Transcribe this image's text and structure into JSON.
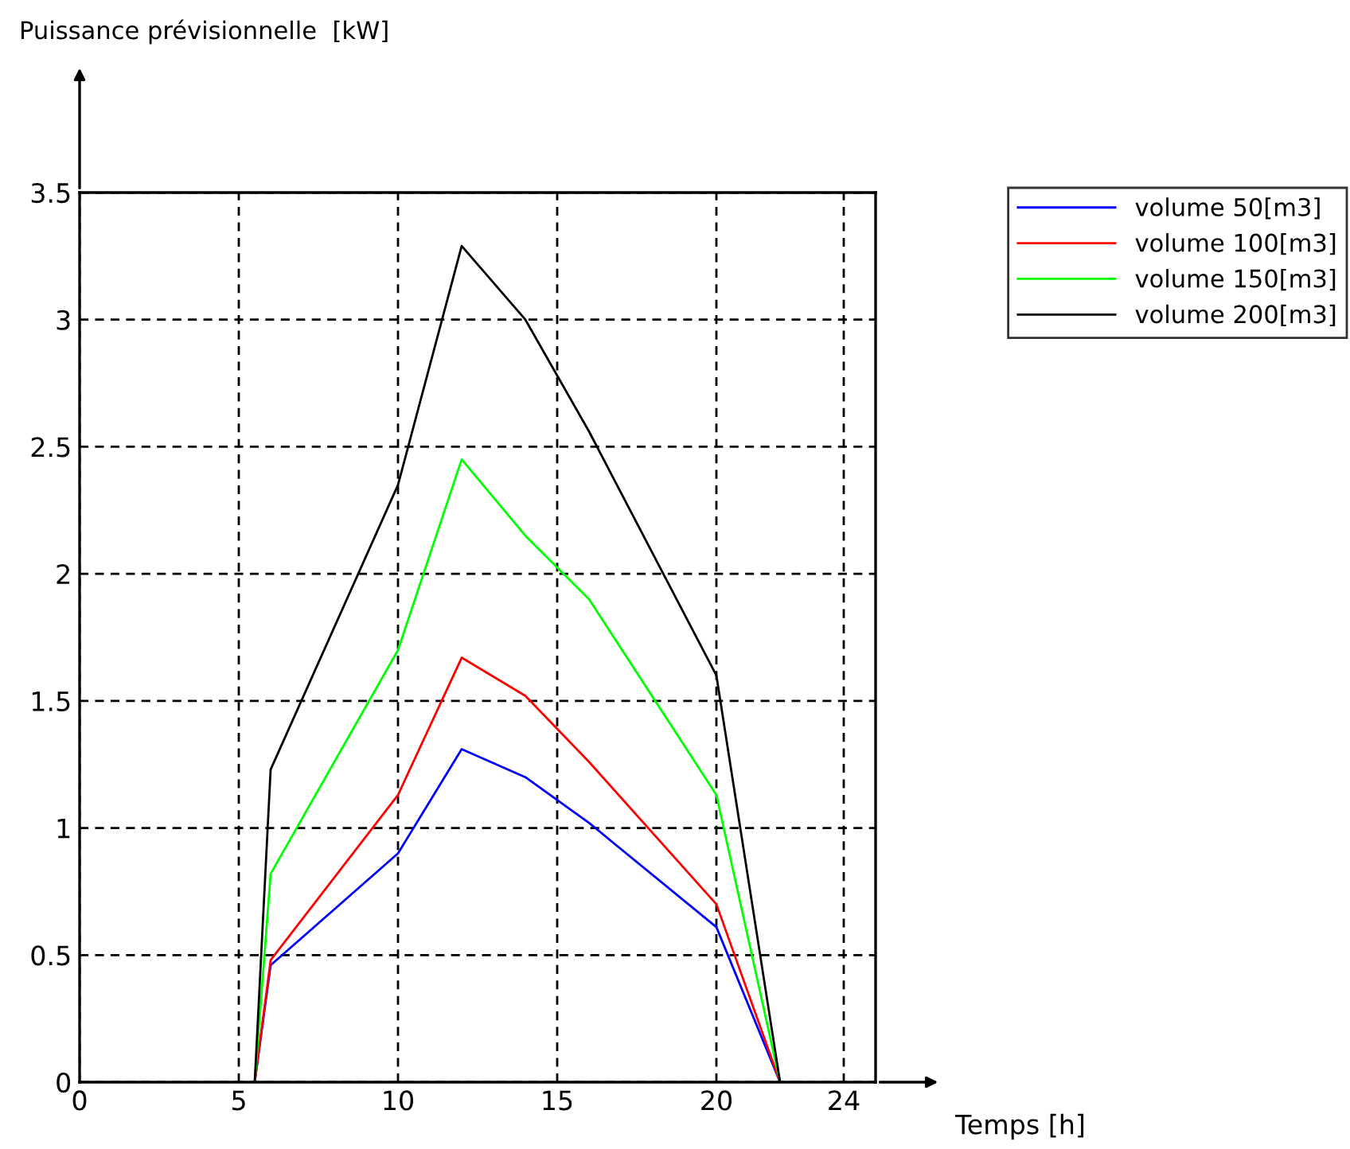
{
  "chart_data": {
    "type": "line",
    "annotations": [
      "Puissance prévisionnelle  [kW]"
    ],
    "xlabel": "Temps [h]",
    "x": [
      5.5,
      6,
      10,
      12,
      14,
      16,
      20,
      22
    ],
    "series": [
      {
        "name": "volume 50[m3]",
        "color": "#0000ff",
        "values": [
          0,
          0.46,
          0.9,
          1.31,
          1.2,
          1.02,
          0.61,
          0
        ]
      },
      {
        "name": "volume 100[m3]",
        "color": "#ff0000",
        "values": [
          0,
          0.48,
          1.13,
          1.67,
          1.52,
          1.26,
          0.7,
          0
        ]
      },
      {
        "name": "volume 150[m3]",
        "color": "#00ff00",
        "values": [
          0,
          0.82,
          1.7,
          2.45,
          2.15,
          1.9,
          1.13,
          0
        ]
      },
      {
        "name": "volume 200[m3]",
        "color": "#000000",
        "values": [
          0,
          1.23,
          2.35,
          3.29,
          3.0,
          2.56,
          1.6,
          0
        ]
      }
    ],
    "xlim": [
      0,
      25
    ],
    "xticks": [
      0,
      5,
      10,
      15,
      20,
      24
    ],
    "ylim": [
      0,
      3.5
    ],
    "yticks": [
      0,
      0.5,
      1,
      1.5,
      2,
      2.5,
      3,
      3.5
    ],
    "grid": true,
    "legend": "top right",
    "marker": "none",
    "line_style": "solid"
  }
}
